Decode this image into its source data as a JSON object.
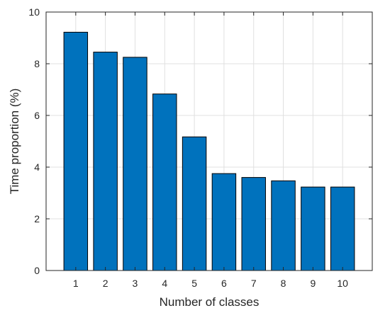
{
  "chart_data": {
    "type": "bar",
    "title": "",
    "xlabel": "Number of classes",
    "ylabel": "Time proportion (%)",
    "categories": [
      "1",
      "2",
      "3",
      "4",
      "5",
      "6",
      "7",
      "8",
      "9",
      "10"
    ],
    "values": [
      9.22,
      8.45,
      8.25,
      6.83,
      5.17,
      3.75,
      3.6,
      3.47,
      3.23,
      3.23
    ],
    "ylim": [
      0,
      10
    ],
    "xlim": [
      0,
      11
    ],
    "yticks": [
      0,
      2,
      4,
      6,
      8,
      10
    ],
    "grid": true,
    "bar_color": "#0072bd",
    "edge_color": "#000000"
  }
}
